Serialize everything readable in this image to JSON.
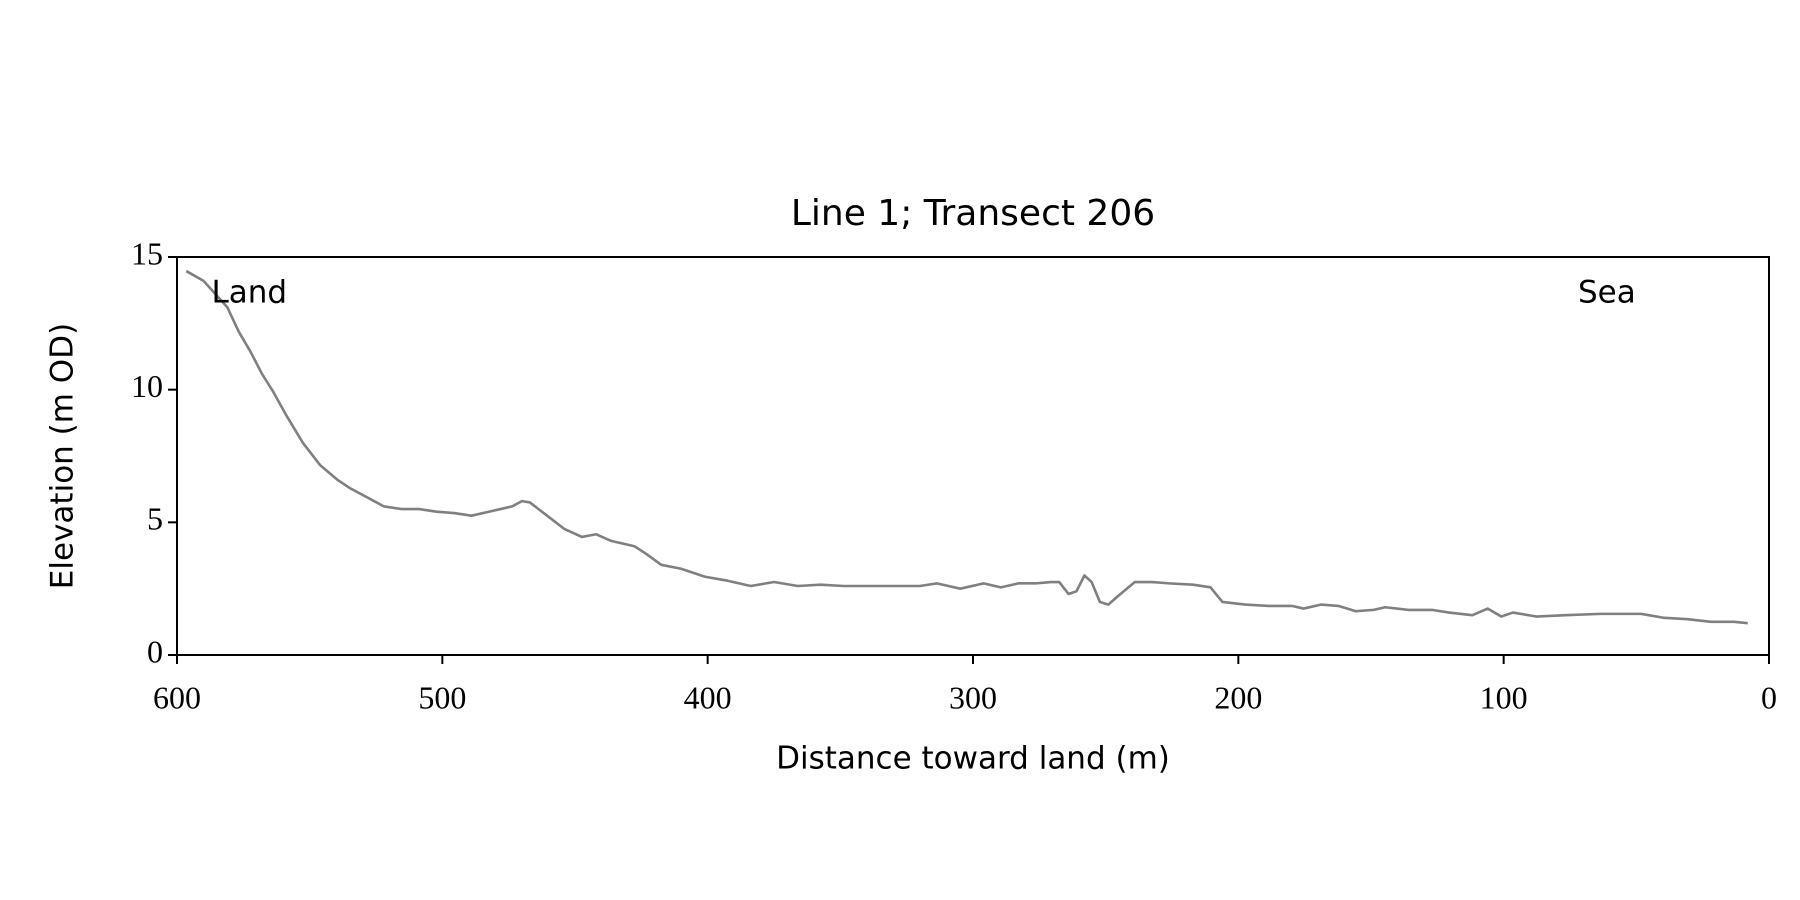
{
  "chart_data": {
    "type": "line",
    "title": "Line 1; Transect 206",
    "x_label": "Distance toward land (m)",
    "y_label": "Elevation (m OD)",
    "xlim": [
      600,
      0
    ],
    "ylim": [
      0,
      15
    ],
    "xticks": [
      600,
      500,
      400,
      300,
      200,
      100,
      0
    ],
    "yticks": [
      0,
      5,
      10,
      15
    ],
    "grid": false,
    "annotations": [
      {
        "text": "Land",
        "x": 587,
        "y": 13.6
      },
      {
        "text": "Sea",
        "x": 72,
        "y": 13.6
      }
    ],
    "x": [
      596.5,
      590,
      585.5,
      581,
      576.8,
      572.4,
      568,
      563.6,
      559.2,
      552.6,
      546,
      539.5,
      535,
      528.5,
      522,
      515.4,
      508.8,
      502.2,
      495.6,
      489,
      482.5,
      473.7,
      470,
      467,
      460.5,
      454,
      447.4,
      442,
      436.4,
      427.6,
      423,
      417.5,
      410,
      401,
      392.5,
      383.8,
      375,
      366,
      357.5,
      348.7,
      333.3,
      320,
      313.6,
      304.8,
      296,
      289.5,
      282.9,
      276.3,
      270.6,
      267.5,
      264,
      261,
      258,
      255.3,
      252.2,
      249,
      245.6,
      239,
      232.5,
      226,
      217,
      210.5,
      206,
      197.4,
      188.6,
      179.8,
      175.4,
      168.9,
      162.3,
      155.7,
      149,
      144.7,
      136,
      127,
      120.6,
      111.8,
      106,
      100.9,
      96.5,
      87.7,
      76.8,
      63.6,
      48.2,
      39.5,
      30.7,
      21.9,
      13.2,
      8
    ],
    "series": [
      {
        "name": "Elevation",
        "color": "#808080",
        "values": [
          14.47,
          14.1,
          13.6,
          13.1,
          12.2,
          11.45,
          10.6,
          9.9,
          9.1,
          8.0,
          7.15,
          6.6,
          6.3,
          5.95,
          5.6,
          5.5,
          5.5,
          5.4,
          5.35,
          5.25,
          5.4,
          5.6,
          5.8,
          5.75,
          5.25,
          4.75,
          4.45,
          4.55,
          4.3,
          4.1,
          3.8,
          3.4,
          3.25,
          2.95,
          2.8,
          2.6,
          2.75,
          2.6,
          2.65,
          2.6,
          2.6,
          2.6,
          2.7,
          2.5,
          2.7,
          2.55,
          2.7,
          2.7,
          2.75,
          2.75,
          2.3,
          2.4,
          3.0,
          2.75,
          2.0,
          1.9,
          2.2,
          2.75,
          2.75,
          2.7,
          2.65,
          2.55,
          2.0,
          1.9,
          1.85,
          1.85,
          1.75,
          1.9,
          1.85,
          1.65,
          1.7,
          1.8,
          1.7,
          1.7,
          1.6,
          1.5,
          1.75,
          1.45,
          1.6,
          1.45,
          1.5,
          1.55,
          1.55,
          1.4,
          1.35,
          1.25,
          1.25,
          1.2
        ]
      }
    ]
  }
}
